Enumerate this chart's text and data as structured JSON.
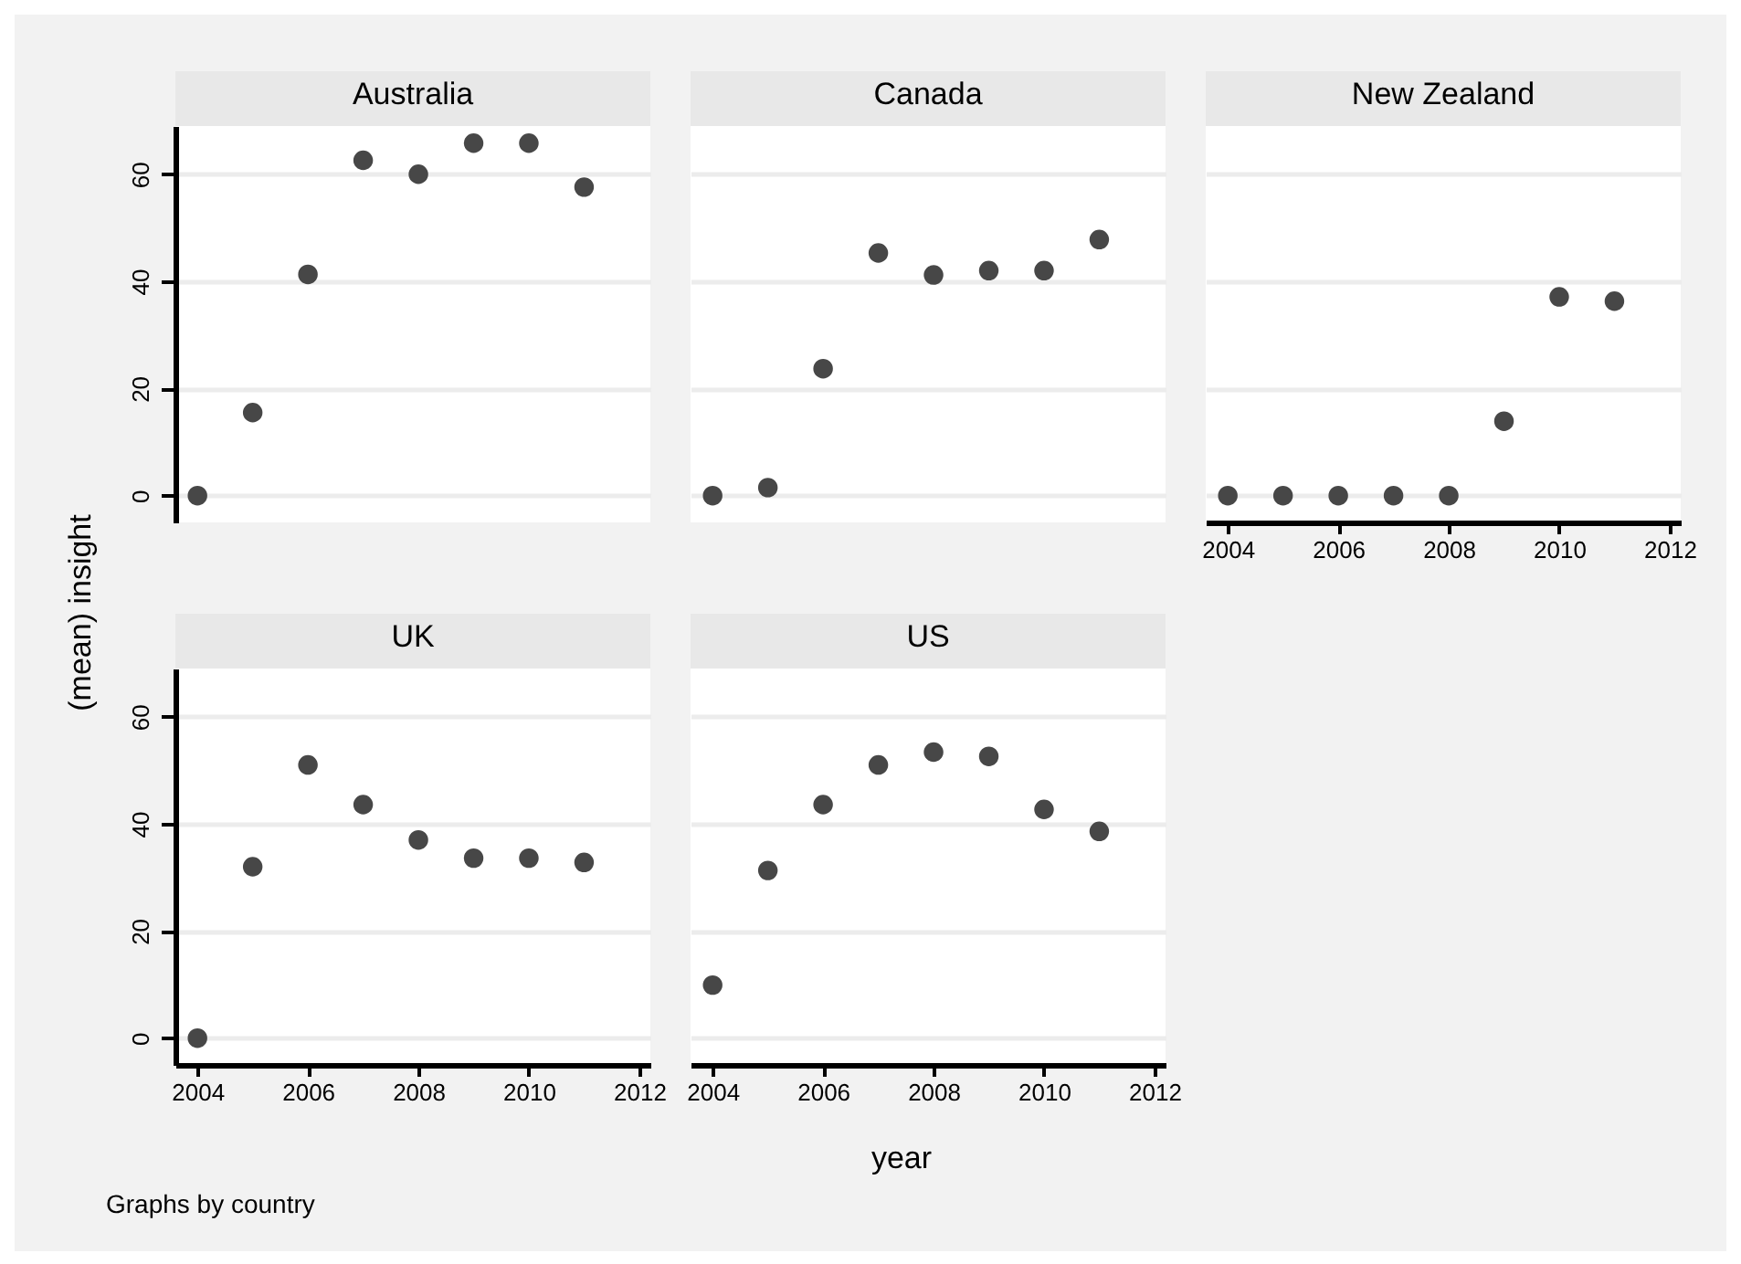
{
  "chart_data": [
    {
      "type": "scatter",
      "title": "Australia",
      "ylabel": "(mean) insight",
      "x": [
        2004,
        2005,
        2006,
        2007,
        2008,
        2009,
        2010,
        2011
      ],
      "series": [
        {
          "color": "#474747",
          "values": [
            0,
            15.5,
            41.3,
            62.6,
            60.0,
            65.8,
            65.8,
            57.6
          ]
        }
      ],
      "xlim": [
        2003.6,
        2012.2
      ],
      "ylim": [
        -5,
        69
      ],
      "xticks": [
        2004,
        2006,
        2008,
        2010,
        2012
      ],
      "yticks": [
        0,
        20,
        40,
        60
      ],
      "grid": "y",
      "marker": "circle",
      "tick_labels": "y"
    },
    {
      "type": "scatter",
      "title": "Canada",
      "x": [
        2004,
        2005,
        2006,
        2007,
        2008,
        2009,
        2010,
        2011
      ],
      "series": [
        {
          "color": "#474747",
          "values": [
            0,
            1.5,
            23.7,
            45.3,
            41.2,
            42.0,
            42.0,
            47.8
          ]
        }
      ],
      "xlim": [
        2003.6,
        2012.2
      ],
      "ylim": [
        -5,
        69
      ],
      "xticks": [
        2004,
        2006,
        2008,
        2010,
        2012
      ],
      "yticks": [
        0,
        20,
        40,
        60
      ],
      "grid": "y",
      "marker": "circle",
      "tick_labels": false
    },
    {
      "type": "scatter",
      "title": "New Zealand",
      "x": [
        2004,
        2005,
        2006,
        2007,
        2008,
        2009,
        2010,
        2011
      ],
      "series": [
        {
          "color": "#474747",
          "values": [
            0,
            0,
            0,
            0,
            0,
            13.9,
            37.1,
            36.3
          ]
        }
      ],
      "xlim": [
        2003.6,
        2012.2
      ],
      "ylim": [
        -5,
        69
      ],
      "xticks": [
        2004,
        2006,
        2008,
        2010,
        2012
      ],
      "yticks": [
        0,
        20,
        40,
        60
      ],
      "grid": "y",
      "marker": "circle",
      "tick_labels": "x"
    },
    {
      "type": "scatter",
      "title": "UK",
      "annotations": [
        "Graphs by country"
      ],
      "x": [
        2004,
        2005,
        2006,
        2007,
        2008,
        2009,
        2010,
        2011
      ],
      "series": [
        {
          "color": "#474747",
          "values": [
            0,
            32.0,
            51.0,
            43.6,
            37.0,
            33.6,
            33.6,
            32.8
          ]
        }
      ],
      "xlim": [
        2003.6,
        2012.2
      ],
      "ylim": [
        -5,
        69
      ],
      "xticks": [
        2004,
        2006,
        2008,
        2010,
        2012
      ],
      "yticks": [
        0,
        20,
        40,
        60
      ],
      "grid": "y",
      "marker": "circle"
    },
    {
      "type": "scatter",
      "title": "US",
      "xlabel": "year",
      "x": [
        2004,
        2005,
        2006,
        2007,
        2008,
        2009,
        2010,
        2011
      ],
      "series": [
        {
          "color": "#474747",
          "values": [
            9.9,
            31.3,
            43.6,
            51.0,
            53.4,
            52.6,
            42.7,
            38.6
          ]
        }
      ],
      "xlim": [
        2003.6,
        2012.2
      ],
      "ylim": [
        -5,
        69
      ],
      "xticks": [
        2004,
        2006,
        2008,
        2010,
        2012
      ],
      "yticks": [
        0,
        20,
        40,
        60
      ],
      "grid": "y",
      "marker": "circle",
      "tick_labels": "x"
    }
  ]
}
